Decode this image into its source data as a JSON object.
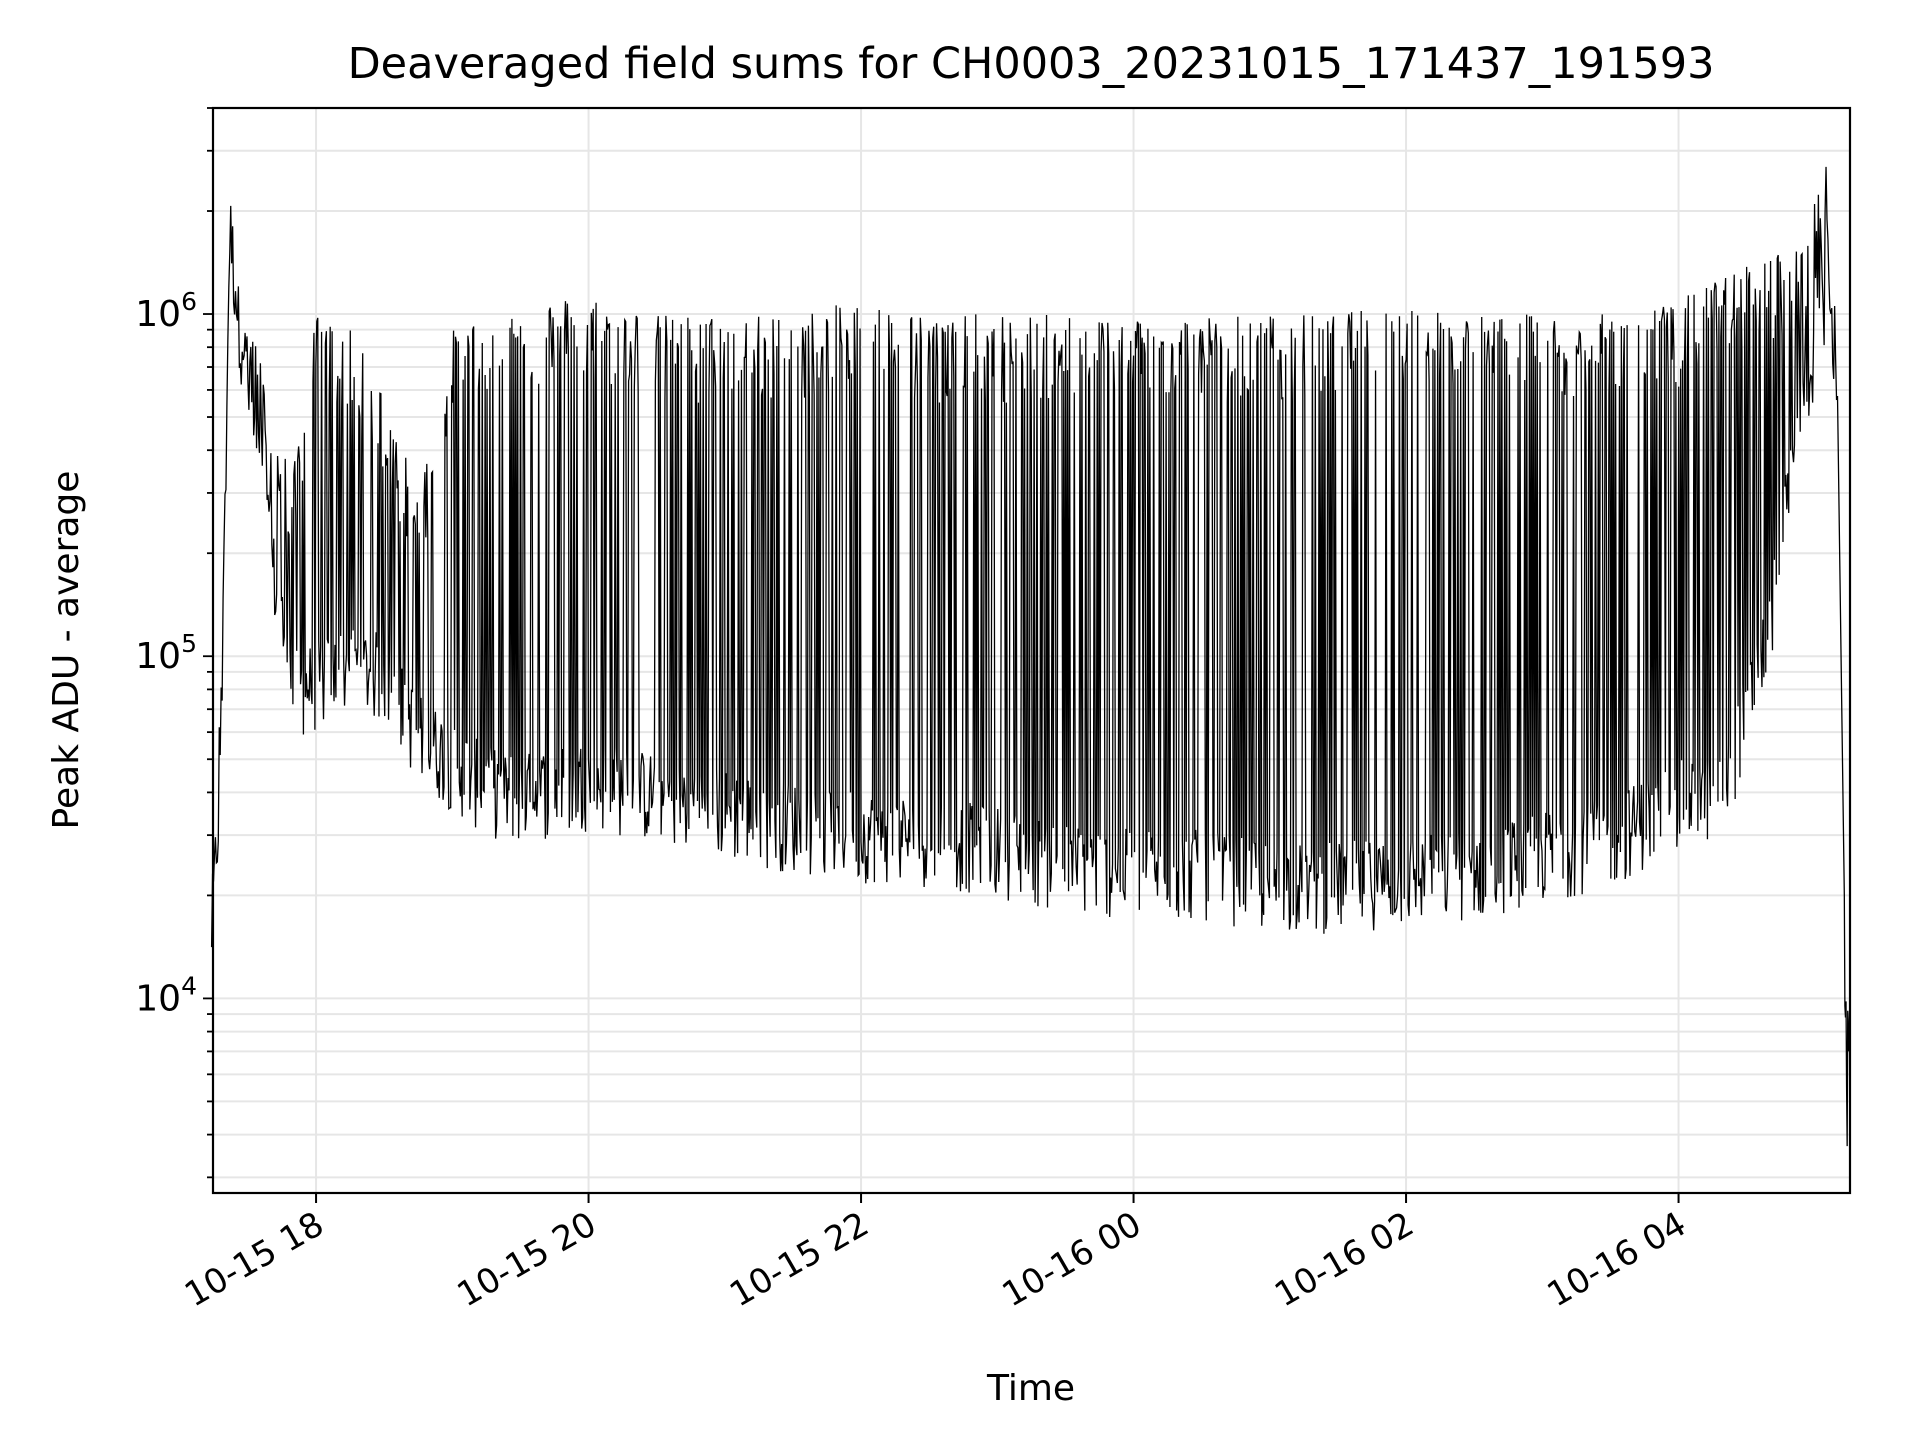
{
  "chart_data": {
    "type": "line",
    "title": "Deaveraged field sums for CH0003_20231015_171437_191593",
    "xlabel": "Time",
    "ylabel": "Peak ADU - average",
    "yscale": "log",
    "ylim": [
      2700,
      4000000
    ],
    "xlim": [
      "2023-10-15 17:14:37",
      "2023-10-16 05:15:30"
    ],
    "grid": true,
    "colors": {
      "line": "#000000",
      "grid": "#e6e6e6",
      "axes": "#000000",
      "background": "#ffffff"
    },
    "x_ticks": [
      {
        "t": "2023-10-15 18:00",
        "label": "10-15 18"
      },
      {
        "t": "2023-10-15 20:00",
        "label": "10-15 20"
      },
      {
        "t": "2023-10-15 22:00",
        "label": "10-15 22"
      },
      {
        "t": "2023-10-16 00:00",
        "label": "10-16 00"
      },
      {
        "t": "2023-10-16 02:00",
        "label": "10-16 02"
      },
      {
        "t": "2023-10-16 04:00",
        "label": "10-16 04"
      }
    ],
    "y_ticks": [
      {
        "value": 10000,
        "base": "10",
        "exp": "4"
      },
      {
        "value": 100000,
        "base": "10",
        "exp": "5"
      },
      {
        "value": 1000000,
        "base": "10",
        "exp": "6"
      }
    ],
    "series": [
      {
        "x": [
          "2023-10-15 17:14",
          "2023-10-15 17:18",
          "2023-10-15 17:22",
          "2023-10-15 17:26",
          "2023-10-15 17:32",
          "2023-10-15 17:40",
          "2023-10-15 17:50",
          "2023-10-15 18:00",
          "2023-10-15 18:15",
          "2023-10-15 18:30",
          "2023-10-15 18:45",
          "2023-10-15 19:00",
          "2023-10-15 19:15",
          "2023-10-15 19:30",
          "2023-10-15 20:00",
          "2023-10-15 20:30",
          "2023-10-15 21:00",
          "2023-10-15 21:30",
          "2023-10-15 22:00",
          "2023-10-15 22:30",
          "2023-10-15 23:00",
          "2023-10-15 23:30",
          "2023-10-16 00:00",
          "2023-10-16 00:30",
          "2023-10-16 01:00",
          "2023-10-16 01:30",
          "2023-10-16 02:00",
          "2023-10-16 02:30",
          "2023-10-16 03:00",
          "2023-10-16 03:30",
          "2023-10-16 04:00",
          "2023-10-16 04:20",
          "2023-10-16 04:40",
          "2023-10-16 04:55",
          "2023-10-16 05:05",
          "2023-10-16 05:10",
          "2023-10-16 05:13",
          "2023-10-16 05:15"
        ],
        "baseline": [
          16000,
          45000,
          1800000,
          1000000,
          500000,
          200000,
          80000,
          85000,
          95000,
          90000,
          60000,
          50000,
          42000,
          40000,
          44000,
          40000,
          36000,
          33000,
          31000,
          30000,
          28000,
          25000,
          24000,
          24000,
          22000,
          22000,
          23000,
          24000,
          27000,
          30000,
          38000,
          42000,
          120000,
          600000,
          1100000,
          700000,
          20000,
          8000
        ],
        "peaks": [
          16000,
          90000,
          2100000,
          1200000,
          1000000,
          500000,
          350000,
          1000000,
          900000,
          600000,
          300000,
          900000,
          1000000,
          1100000,
          1150000,
          1000000,
          1000000,
          1000000,
          1100000,
          1000000,
          1000000,
          1000000,
          1000000,
          1000000,
          1000000,
          1000000,
          1100000,
          1000000,
          1000000,
          1000000,
          1100000,
          1300000,
          1500000,
          1600000,
          3000000,
          1200000,
          20000,
          8000
        ],
        "end_points": {
          "min_value": 3700,
          "final_value": 7000
        }
      }
    ]
  }
}
